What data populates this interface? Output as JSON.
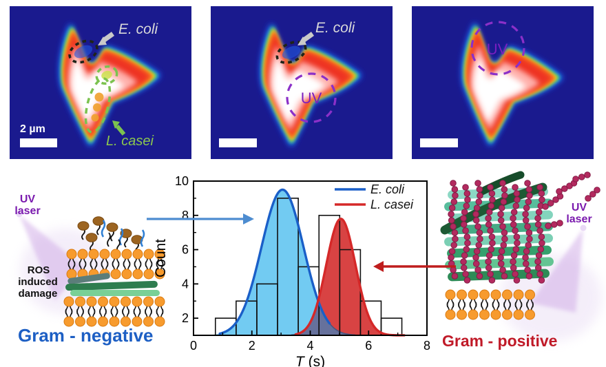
{
  "figure": {
    "panels": [
      {
        "ecoli_label": "E. coli",
        "lcasei_label": "L. casei",
        "scalebar_label": "2 µm"
      },
      {
        "ecoli_label": "E. coli",
        "uv_label": "UV"
      },
      {
        "uv_label": "UV"
      }
    ],
    "left_illustration": {
      "laser_line1": "UV",
      "laser_line2": "laser",
      "ros_line1": "ROS",
      "ros_line2": "induced",
      "ros_line3": "damage",
      "caption": "Gram - negative"
    },
    "right_illustration": {
      "laser_line1": "UV",
      "laser_line2": "laser",
      "caption": "Gram - positive"
    },
    "colors": {
      "gram_negative_blue": "#1d5fc4",
      "gram_positive_red": "#c01a28",
      "uv_purple": "#7a1aae",
      "ecoli_gray": "#d9d9d9",
      "lcasei_green": "#8cc84e",
      "heatmap_background": "#1a1a8e"
    }
  },
  "chart_data": {
    "type": "histogram",
    "title": "",
    "xlabel": "T (s)",
    "ylabel": "Count",
    "xlim": [
      0,
      8
    ],
    "ylim": [
      1,
      10
    ],
    "xticks": [
      0,
      2,
      4,
      6,
      8
    ],
    "yticks": [
      2,
      4,
      6,
      8,
      10
    ],
    "grid": false,
    "histogram": {
      "bin_start": 0.75,
      "bin_width": 0.71,
      "counts": [
        2,
        3,
        4,
        9,
        5,
        8,
        6,
        3,
        2
      ]
    },
    "fits": [
      {
        "name": "E. coli",
        "mean": 3.05,
        "sigma": 0.72,
        "peak": 9.5,
        "baseline": 1,
        "line_color": "#1a5fc8",
        "fill_color": "#72cbf2",
        "draw_range": [
          0.9,
          4.66
        ]
      },
      {
        "name": "L. casei",
        "mean": 5.05,
        "sigma": 0.5,
        "peak": 7.8,
        "baseline": 1,
        "line_color": "#d52828",
        "fill_color": "#d84343",
        "draw_range": [
          3.5,
          7.25
        ]
      }
    ],
    "overlap_color": "#66719c",
    "legend": {
      "position": "top-right",
      "items": [
        {
          "label": "E. coli",
          "color": "#1a5fc8"
        },
        {
          "label": "L. casei",
          "color": "#d52828"
        }
      ]
    }
  }
}
